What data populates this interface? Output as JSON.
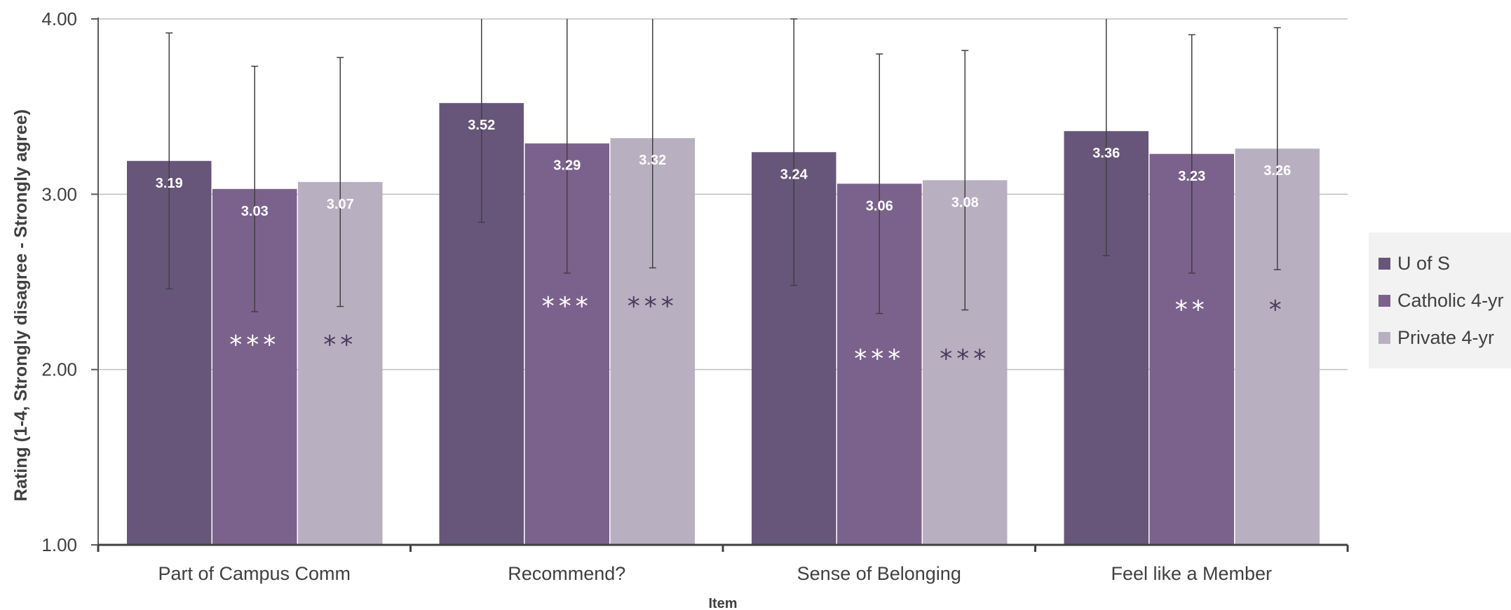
{
  "chart_data": {
    "type": "bar",
    "title": "",
    "xlabel": "Item",
    "ylabel": "Rating (1-4, Strongly disagree - Strongly agree)",
    "ylim": [
      1,
      4
    ],
    "yticks": [
      "1.00",
      "2.00",
      "3.00",
      "4.00"
    ],
    "grid": true,
    "legend_position": "right",
    "categories": [
      "Part of Campus Comm",
      "Recommend?",
      "Sense of Belonging",
      "Feel like a Member"
    ],
    "series": [
      {
        "name": "U of S",
        "color": "#67567a",
        "values": [
          3.19,
          3.52,
          3.24,
          3.36
        ],
        "labels": [
          "3.19",
          "3.52",
          "3.24",
          "3.36"
        ],
        "error_low": [
          2.46,
          2.84,
          2.48,
          2.65
        ],
        "error_high": [
          3.92,
          4.2,
          4.0,
          4.07
        ],
        "significance": [
          "",
          "",
          "",
          ""
        ]
      },
      {
        "name": "Catholic 4-yr",
        "color": "#7b628c",
        "values": [
          3.03,
          3.29,
          3.06,
          3.23
        ],
        "labels": [
          "3.03",
          "3.29",
          "3.06",
          "3.23"
        ],
        "error_low": [
          2.33,
          2.55,
          2.32,
          2.55
        ],
        "error_high": [
          3.73,
          4.03,
          3.8,
          3.91
        ],
        "significance": [
          "***",
          "***",
          "***",
          "**"
        ]
      },
      {
        "name": "Private 4-yr",
        "color": "#b8b0c1",
        "values": [
          3.07,
          3.32,
          3.08,
          3.26
        ],
        "labels": [
          "3.07",
          "3.32",
          "3.08",
          "3.26"
        ],
        "error_low": [
          2.36,
          2.58,
          2.34,
          2.57
        ],
        "error_high": [
          3.78,
          4.06,
          3.82,
          3.95
        ],
        "significance": [
          "**",
          "***",
          "***",
          "*"
        ]
      }
    ],
    "significance_levels": [
      2.15,
      2.37,
      2.07,
      2.35
    ]
  }
}
